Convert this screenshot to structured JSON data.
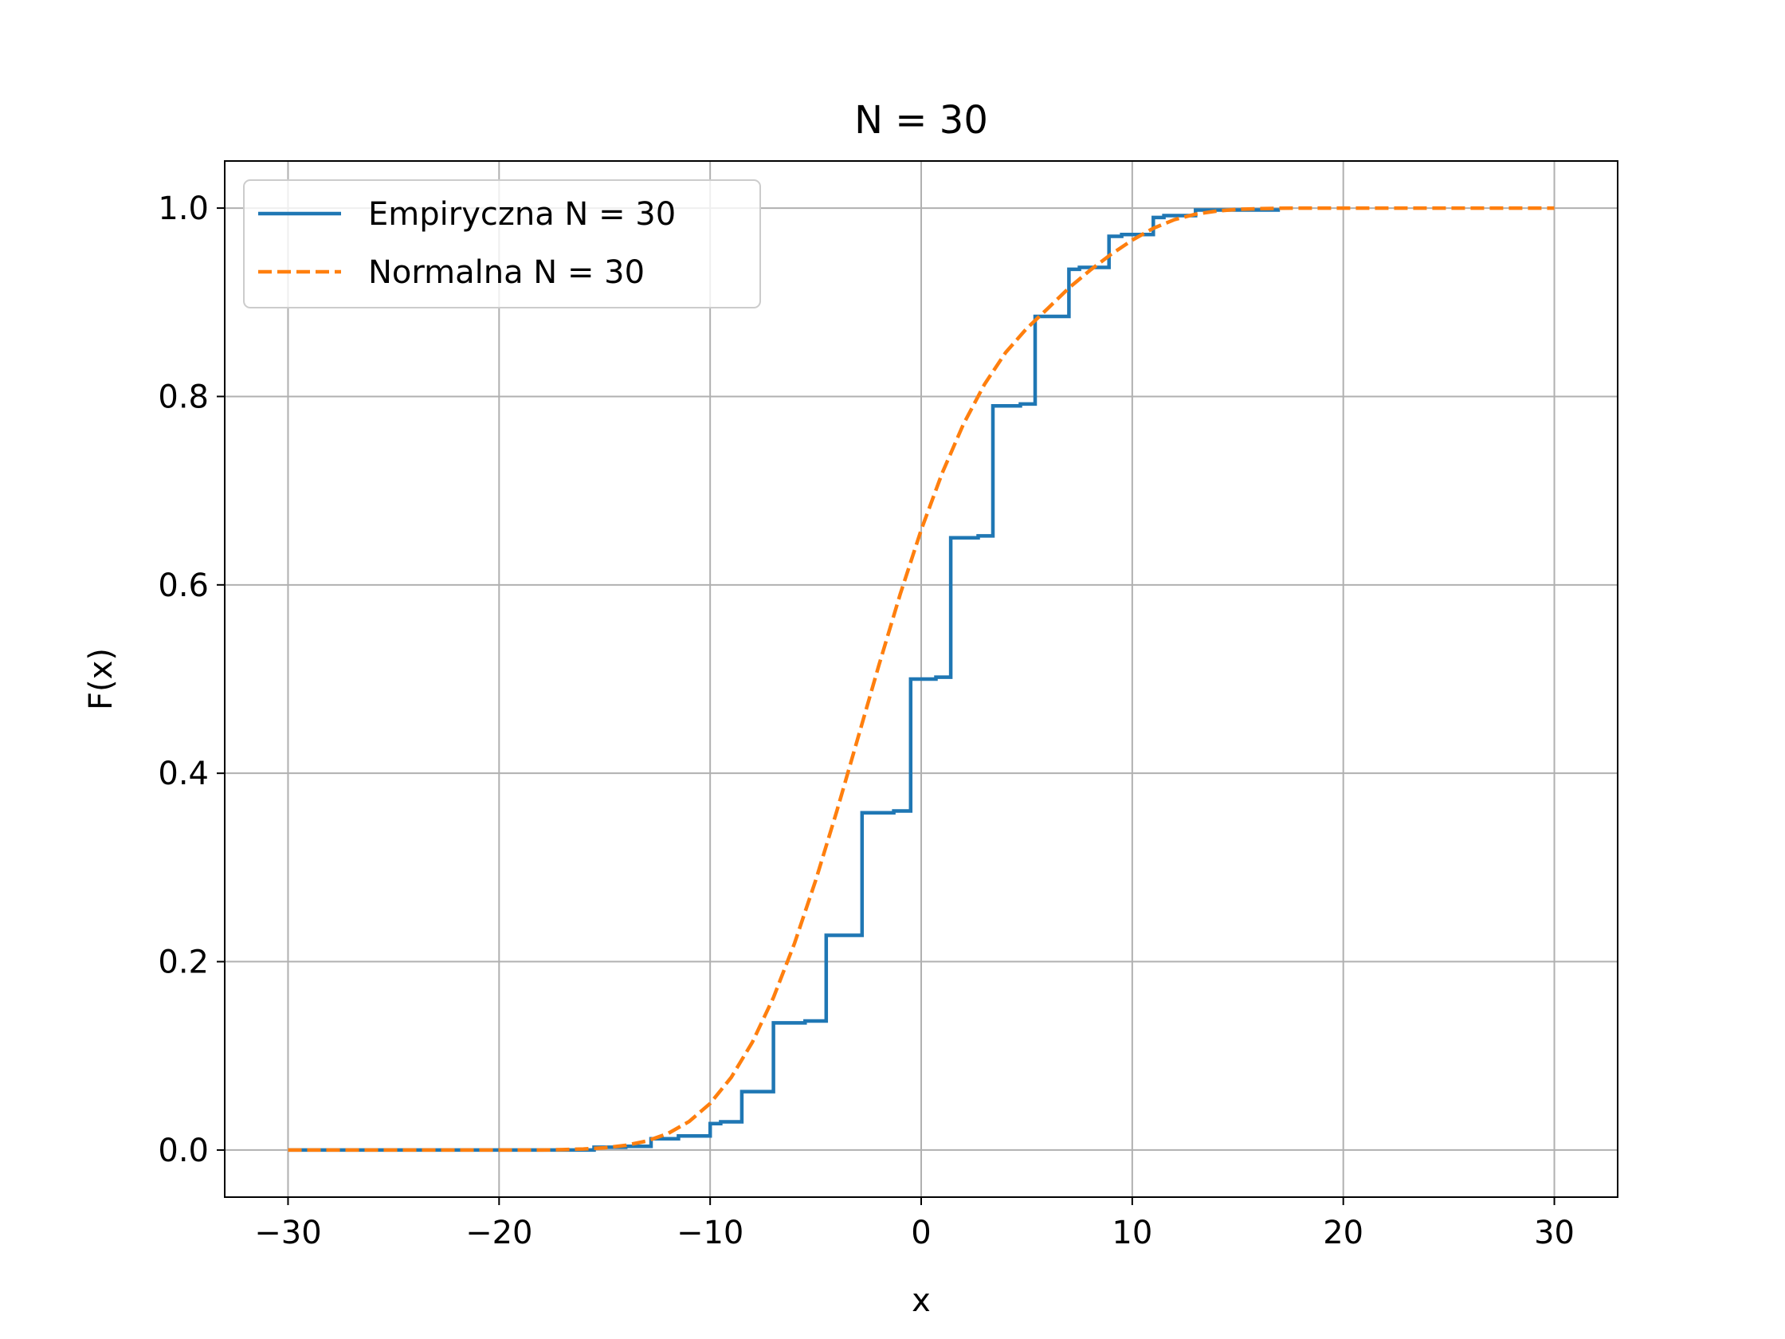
{
  "chart_data": {
    "type": "line",
    "title": "N = 30",
    "xlabel": "x",
    "ylabel": "F(x)",
    "xlim": [
      -33,
      33
    ],
    "ylim": [
      -0.05,
      1.05
    ],
    "xticks": [
      -30,
      -20,
      -10,
      0,
      10,
      20,
      30
    ],
    "xtick_labels": [
      "−30",
      "−20",
      "−10",
      "0",
      "10",
      "20",
      "30"
    ],
    "yticks": [
      0.0,
      0.2,
      0.4,
      0.6,
      0.8,
      1.0
    ],
    "ytick_labels": [
      "0.0",
      "0.2",
      "0.4",
      "0.6",
      "0.8",
      "1.0"
    ],
    "grid": true,
    "legend_position": "top-left",
    "series": [
      {
        "name": "Empiryczna N = 30",
        "color": "#1f77b4",
        "style": "solid",
        "x": [
          -30,
          -15.5,
          -15.5,
          -14,
          -14,
          -12.8,
          -12.8,
          -11.5,
          -11.5,
          -10,
          -10,
          -9.5,
          -9.5,
          -8.5,
          -8.5,
          -7,
          -7,
          -5.5,
          -5.5,
          -4.5,
          -4.5,
          -2.8,
          -2.8,
          -1.3,
          -1.3,
          -0.5,
          -0.5,
          0.7,
          0.7,
          1.4,
          1.4,
          2.7,
          2.7,
          3.4,
          3.4,
          4.7,
          4.7,
          5.4,
          5.4,
          7,
          7,
          7.5,
          7.5,
          8.9,
          8.9,
          9.5,
          9.5,
          11,
          11,
          11.5,
          11.5,
          13,
          13,
          17
        ],
        "y": [
          0.0,
          0.0,
          0.003,
          0.003,
          0.004,
          0.004,
          0.012,
          0.012,
          0.015,
          0.015,
          0.028,
          0.028,
          0.03,
          0.03,
          0.062,
          0.062,
          0.135,
          0.135,
          0.137,
          0.137,
          0.228,
          0.228,
          0.358,
          0.358,
          0.36,
          0.36,
          0.5,
          0.5,
          0.502,
          0.502,
          0.65,
          0.65,
          0.652,
          0.652,
          0.79,
          0.79,
          0.792,
          0.792,
          0.885,
          0.885,
          0.935,
          0.935,
          0.937,
          0.937,
          0.97,
          0.97,
          0.972,
          0.972,
          0.99,
          0.99,
          0.992,
          0.992,
          0.998,
          0.998
        ]
      },
      {
        "name": "Normalna N = 30",
        "color": "#ff7f0e",
        "style": "dashed",
        "x": [
          -30,
          -28,
          -26,
          -24,
          -22,
          -20,
          -18,
          -17,
          -16,
          -15,
          -14,
          -13,
          -12,
          -11,
          -10,
          -9,
          -8,
          -7,
          -6,
          -5,
          -4,
          -3,
          -2,
          -1,
          0,
          1,
          2,
          3,
          4,
          5,
          6,
          7,
          8,
          9,
          10,
          11,
          12,
          13,
          14,
          15,
          16,
          17,
          18,
          20,
          22,
          24,
          26,
          28,
          30
        ],
        "y": [
          0.0,
          0.0,
          0.0,
          0.0,
          0.0,
          0.0,
          0.0,
          0.0004,
          0.0011,
          0.0024,
          0.005,
          0.0096,
          0.0175,
          0.0302,
          0.0495,
          0.0771,
          0.1144,
          0.1619,
          0.2196,
          0.2863,
          0.3598,
          0.4371,
          0.5149,
          0.5896,
          0.6584,
          0.719,
          0.7706,
          0.813,
          0.8466,
          0.8722,
          0.8935,
          0.9152,
          0.934,
          0.951,
          0.966,
          0.9786,
          0.9877,
          0.9936,
          0.9969,
          0.9986,
          0.9994,
          0.9998,
          1.0,
          1.0,
          1.0,
          1.0,
          1.0,
          1.0,
          1.0
        ]
      }
    ]
  }
}
